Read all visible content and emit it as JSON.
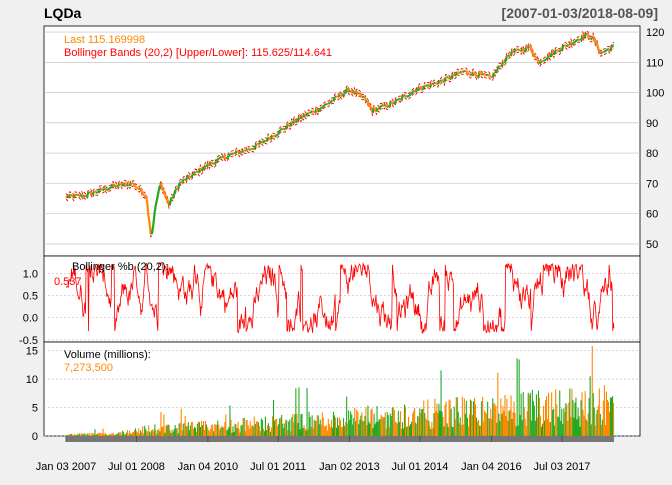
{
  "header": {
    "symbol": "LQDa",
    "date_range": "[2007-01-03/2018-08-09]"
  },
  "colors": {
    "background": "#f0f0f0",
    "panel_bg": "#ffffff",
    "grid": "#bbbbbb",
    "up": "#22aa22",
    "down": "#ff8800",
    "band": "#ff0000",
    "last_text": "#ff8800",
    "bb_text": "#ff0000",
    "volume_text": "#ff8800"
  },
  "chart_data": [
    {
      "type": "line",
      "panel": "price",
      "legend": {
        "last_label": "Last 115.169998",
        "bands_label": "Bollinger Bands (20,2) [Upper/Lower]: 115.625/114.641"
      },
      "y_ticks": [
        50,
        60,
        70,
        80,
        90,
        100,
        110,
        120
      ],
      "ylim": [
        46,
        122
      ],
      "series": [
        {
          "x": [
            "2007-01-03",
            "2007-06-01",
            "2008-01-02",
            "2008-06-02",
            "2008-09-15",
            "2008-10-24",
            "2008-11-28",
            "2009-01-05",
            "2009-03-09",
            "2009-06-01",
            "2010-01-04",
            "2010-06-01",
            "2011-01-03",
            "2011-06-01",
            "2012-01-03",
            "2012-06-01",
            "2013-01-02",
            "2013-05-01",
            "2013-07-01",
            "2014-01-02",
            "2014-06-02",
            "2015-01-02",
            "2015-06-01",
            "2016-01-04",
            "2016-06-01",
            "2016-11-01",
            "2017-01-03",
            "2017-06-01",
            "2018-01-02",
            "2018-03-01",
            "2018-05-01",
            "2018-08-09"
          ],
          "y": [
            65.5,
            66,
            69,
            70,
            66,
            52,
            63,
            70,
            63,
            70,
            76,
            79,
            82,
            86,
            92,
            95,
            101,
            98,
            94,
            97,
            101,
            104,
            107,
            105,
            113,
            115,
            110,
            114,
            119,
            118,
            113,
            115.2
          ]
        }
      ]
    },
    {
      "type": "line",
      "panel": "bollinger_pctb",
      "label": "Bollinger %b (20,2):",
      "value_label": "0.537",
      "y_ticks": [
        -0.5,
        0.0,
        0.5,
        1.0
      ],
      "ylim": [
        -0.55,
        1.4
      ]
    },
    {
      "type": "bar",
      "panel": "volume",
      "label": "Volume (millions):",
      "value_label": "7,273,500",
      "y_ticks": [
        0,
        5,
        10,
        15
      ],
      "ylim": [
        0,
        16.5
      ],
      "series": [
        {
          "x": [
            "2007-01-03",
            "2008-01-02",
            "2008-10-01",
            "2009-06-01",
            "2010-06-01",
            "2011-06-01",
            "2012-06-01",
            "2013-06-03",
            "2014-06-02",
            "2015-06-01",
            "2016-06-01",
            "2017-01-03",
            "2017-06-01",
            "2018-01-02",
            "2018-08-09"
          ],
          "y": [
            0.3,
            0.5,
            1.5,
            1.8,
            2.2,
            2.8,
            3.3,
            4.0,
            4.6,
            5.3,
            5.5,
            6.3,
            7.0,
            6.2,
            7.27
          ]
        }
      ]
    }
  ],
  "x_axis": {
    "ticks": [
      {
        "label": "Jan 03 2007",
        "date": "2007-01-03"
      },
      {
        "label": "Jul 01 2008",
        "date": "2008-07-01"
      },
      {
        "label": "Jan 04 2010",
        "date": "2010-01-04"
      },
      {
        "label": "Jul 01 2011",
        "date": "2011-07-01"
      },
      {
        "label": "Jan 02 2013",
        "date": "2013-01-02"
      },
      {
        "label": "Jul 01 2014",
        "date": "2014-07-01"
      },
      {
        "label": "Jan 04 2016",
        "date": "2016-01-04"
      },
      {
        "label": "Jul 03 2017",
        "date": "2017-07-03"
      }
    ],
    "start": "2007-01-03",
    "end": "2018-08-09"
  }
}
